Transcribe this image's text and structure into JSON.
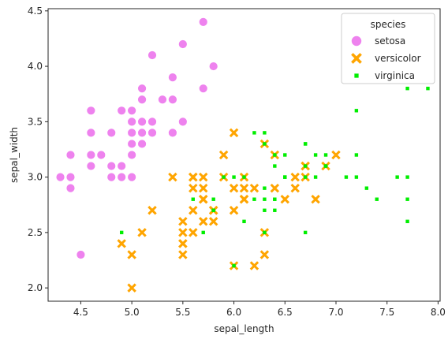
{
  "chart_data": {
    "type": "scatter",
    "xlabel": "sepal_length",
    "ylabel": "sepal_width",
    "xlim": [
      4.18,
      8.02
    ],
    "ylim": [
      1.88,
      4.52
    ],
    "xticks": [
      4.5,
      5.0,
      5.5,
      6.0,
      6.5,
      7.0,
      7.5,
      8.0
    ],
    "yticks": [
      2.0,
      2.5,
      3.0,
      3.5,
      4.0,
      4.5
    ],
    "xtick_labels": [
      "4.5",
      "5.0",
      "5.5",
      "6.0",
      "6.5",
      "7.0",
      "7.5",
      "8.0"
    ],
    "ytick_labels": [
      "2.0",
      "2.5",
      "3.0",
      "3.5",
      "4.0",
      "4.5"
    ],
    "legend": {
      "title": "species",
      "position": "top-right"
    },
    "grid": false,
    "series": [
      {
        "name": "setosa",
        "marker": "circle",
        "color": "#ee82ee",
        "points": [
          [
            5.1,
            3.5
          ],
          [
            4.9,
            3.0
          ],
          [
            4.7,
            3.2
          ],
          [
            4.6,
            3.1
          ],
          [
            5.0,
            3.6
          ],
          [
            5.4,
            3.9
          ],
          [
            4.6,
            3.4
          ],
          [
            5.0,
            3.4
          ],
          [
            4.4,
            2.9
          ],
          [
            4.9,
            3.1
          ],
          [
            5.4,
            3.7
          ],
          [
            4.8,
            3.4
          ],
          [
            4.8,
            3.0
          ],
          [
            4.3,
            3.0
          ],
          [
            5.8,
            4.0
          ],
          [
            5.7,
            4.4
          ],
          [
            5.4,
            3.9
          ],
          [
            5.1,
            3.5
          ],
          [
            5.7,
            3.8
          ],
          [
            5.1,
            3.8
          ],
          [
            5.4,
            3.4
          ],
          [
            5.1,
            3.7
          ],
          [
            4.6,
            3.6
          ],
          [
            5.1,
            3.3
          ],
          [
            4.8,
            3.4
          ],
          [
            5.0,
            3.0
          ],
          [
            5.0,
            3.4
          ],
          [
            5.2,
            3.5
          ],
          [
            5.2,
            3.4
          ],
          [
            4.7,
            3.2
          ],
          [
            4.8,
            3.1
          ],
          [
            5.4,
            3.4
          ],
          [
            5.2,
            4.1
          ],
          [
            5.5,
            4.2
          ],
          [
            4.9,
            3.1
          ],
          [
            5.0,
            3.2
          ],
          [
            5.5,
            3.5
          ],
          [
            4.9,
            3.6
          ],
          [
            4.4,
            3.0
          ],
          [
            5.1,
            3.4
          ],
          [
            5.0,
            3.5
          ],
          [
            4.5,
            2.3
          ],
          [
            4.4,
            3.2
          ],
          [
            5.0,
            3.5
          ],
          [
            5.1,
            3.8
          ],
          [
            4.8,
            3.0
          ],
          [
            5.1,
            3.8
          ],
          [
            4.6,
            3.2
          ],
          [
            5.3,
            3.7
          ],
          [
            5.0,
            3.3
          ]
        ]
      },
      {
        "name": "versicolor",
        "marker": "x",
        "color": "#ffa500",
        "points": [
          [
            7.0,
            3.2
          ],
          [
            6.4,
            3.2
          ],
          [
            6.9,
            3.1
          ],
          [
            5.5,
            2.3
          ],
          [
            6.5,
            2.8
          ],
          [
            5.7,
            2.8
          ],
          [
            6.3,
            3.3
          ],
          [
            4.9,
            2.4
          ],
          [
            6.6,
            2.9
          ],
          [
            5.2,
            2.7
          ],
          [
            5.0,
            2.0
          ],
          [
            5.9,
            3.0
          ],
          [
            6.0,
            2.2
          ],
          [
            6.1,
            2.9
          ],
          [
            5.6,
            2.9
          ],
          [
            6.7,
            3.1
          ],
          [
            5.6,
            3.0
          ],
          [
            5.8,
            2.7
          ],
          [
            6.2,
            2.2
          ],
          [
            5.6,
            2.5
          ],
          [
            5.9,
            3.2
          ],
          [
            6.1,
            2.8
          ],
          [
            6.3,
            2.5
          ],
          [
            6.1,
            2.8
          ],
          [
            6.4,
            2.9
          ],
          [
            6.6,
            3.0
          ],
          [
            6.8,
            2.8
          ],
          [
            6.7,
            3.0
          ],
          [
            6.0,
            2.9
          ],
          [
            5.7,
            2.6
          ],
          [
            5.5,
            2.4
          ],
          [
            5.5,
            2.4
          ],
          [
            5.8,
            2.7
          ],
          [
            6.0,
            2.7
          ],
          [
            5.4,
            3.0
          ],
          [
            6.0,
            3.4
          ],
          [
            6.7,
            3.1
          ],
          [
            6.3,
            2.3
          ],
          [
            5.6,
            3.0
          ],
          [
            5.5,
            2.5
          ],
          [
            5.5,
            2.6
          ],
          [
            6.1,
            3.0
          ],
          [
            5.8,
            2.6
          ],
          [
            5.0,
            2.3
          ],
          [
            5.6,
            2.7
          ],
          [
            5.7,
            3.0
          ],
          [
            5.7,
            2.9
          ],
          [
            6.2,
            2.9
          ],
          [
            5.1,
            2.5
          ],
          [
            5.7,
            2.8
          ]
        ]
      },
      {
        "name": "virginica",
        "marker": "square",
        "color": "#00ee00",
        "points": [
          [
            6.3,
            3.3
          ],
          [
            5.8,
            2.7
          ],
          [
            7.1,
            3.0
          ],
          [
            6.3,
            2.9
          ],
          [
            6.5,
            3.0
          ],
          [
            7.6,
            3.0
          ],
          [
            4.9,
            2.5
          ],
          [
            7.3,
            2.9
          ],
          [
            6.7,
            2.5
          ],
          [
            7.2,
            3.6
          ],
          [
            6.5,
            3.2
          ],
          [
            6.4,
            2.7
          ],
          [
            6.8,
            3.0
          ],
          [
            5.7,
            2.5
          ],
          [
            5.8,
            2.8
          ],
          [
            6.4,
            3.2
          ],
          [
            6.5,
            3.0
          ],
          [
            7.7,
            3.8
          ],
          [
            7.7,
            2.6
          ],
          [
            6.0,
            2.2
          ],
          [
            6.9,
            3.2
          ],
          [
            5.6,
            2.8
          ],
          [
            7.7,
            2.8
          ],
          [
            6.3,
            2.7
          ],
          [
            6.7,
            3.3
          ],
          [
            7.2,
            3.2
          ],
          [
            6.2,
            2.8
          ],
          [
            6.1,
            3.0
          ],
          [
            6.4,
            2.8
          ],
          [
            7.2,
            3.0
          ],
          [
            7.4,
            2.8
          ],
          [
            7.9,
            3.8
          ],
          [
            6.4,
            2.8
          ],
          [
            6.3,
            2.8
          ],
          [
            6.1,
            2.6
          ],
          [
            7.7,
            3.0
          ],
          [
            6.3,
            3.4
          ],
          [
            6.4,
            3.1
          ],
          [
            6.0,
            3.0
          ],
          [
            6.9,
            3.1
          ],
          [
            6.7,
            3.1
          ],
          [
            6.9,
            3.1
          ],
          [
            5.8,
            2.7
          ],
          [
            6.8,
            3.2
          ],
          [
            6.7,
            3.3
          ],
          [
            6.7,
            3.0
          ],
          [
            6.3,
            2.5
          ],
          [
            6.5,
            3.0
          ],
          [
            6.2,
            3.4
          ],
          [
            5.9,
            3.0
          ]
        ]
      }
    ]
  }
}
